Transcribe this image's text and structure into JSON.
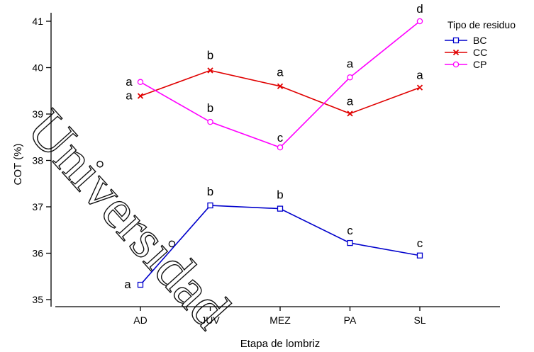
{
  "chart_data": {
    "type": "line",
    "xlabel": "Etapa de lombriz",
    "ylabel": "COT (%)",
    "categories": [
      "AD",
      "JUV",
      "MEZ",
      "PA",
      "SL"
    ],
    "ylim": [
      34.8,
      41.35
    ],
    "yticks": [
      35,
      36,
      37,
      38,
      39,
      40,
      41
    ],
    "legend": {
      "title": "Tipo de residuo",
      "placement": "top-right"
    },
    "series": [
      {
        "name": "BC",
        "color": "#0000cc",
        "marker": "square",
        "values": [
          35.32,
          37.03,
          36.96,
          36.22,
          35.95
        ],
        "letters": [
          "a",
          "b",
          "b",
          "c",
          "c"
        ]
      },
      {
        "name": "CC",
        "color": "#e00000",
        "marker": "x",
        "values": [
          39.39,
          39.94,
          39.6,
          39.01,
          39.57
        ],
        "letters": [
          "a",
          "b",
          "a",
          "a",
          "a"
        ]
      },
      {
        "name": "CP",
        "color": "#ff00ff",
        "marker": "circle",
        "values": [
          39.69,
          38.83,
          38.28,
          39.79,
          41.0
        ],
        "letters": [
          "a",
          "b",
          "c",
          "a",
          "d"
        ]
      }
    ],
    "grid": false
  },
  "watermark": {
    "text": "Universidad"
  }
}
